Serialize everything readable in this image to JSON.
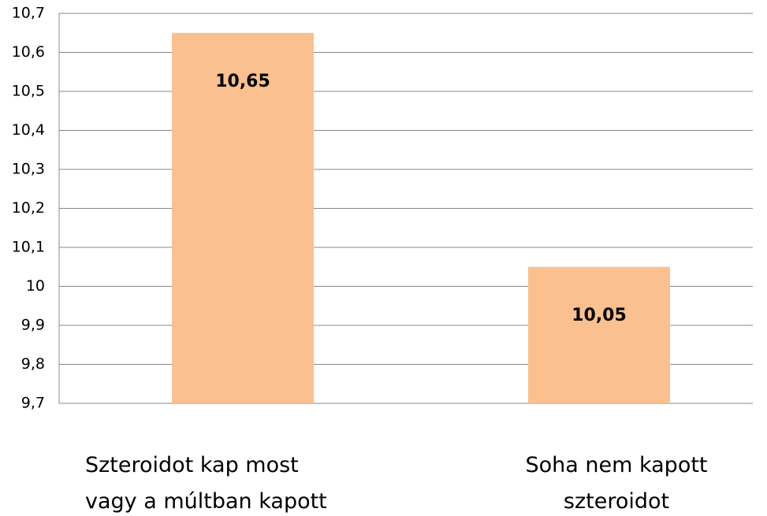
{
  "chart_data": {
    "type": "bar",
    "categories": [
      "Szteroidot kap most vagy a múltban kapott",
      "Soha nem kapott szteroidot"
    ],
    "values": [
      10.65,
      10.05
    ],
    "value_labels": [
      "10,65",
      "10,05"
    ],
    "color": "#fac090",
    "ylim": [
      9.7,
      10.7
    ],
    "yticks": [
      {
        "value": 9.7,
        "label": "9,7"
      },
      {
        "value": 9.8,
        "label": "9,8"
      },
      {
        "value": 9.9,
        "label": "9,9"
      },
      10,
      {
        "value": 10.1,
        "label": "10,1"
      },
      {
        "value": 10.2,
        "label": "10,2"
      },
      {
        "value": 10.3,
        "label": "10,3"
      },
      {
        "value": 10.4,
        "label": "10,4"
      },
      {
        "value": 10.5,
        "label": "10,5"
      },
      {
        "value": 10.6,
        "label": "10,6"
      },
      {
        "value": 10.7,
        "label": "10,7"
      }
    ],
    "grid": true
  }
}
